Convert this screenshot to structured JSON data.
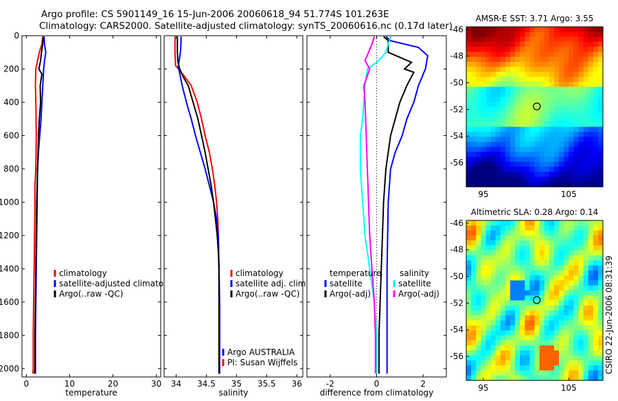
{
  "header": {
    "title_line1": "Argo profile: CS 5901149_16 15-Jun-2006 20060618_94 51.774S 101.263E",
    "title_line2": "Climatology: CARS2000. Satellite-adjusted climatology: synTS_20060616.nc (0.17d later)"
  },
  "side_label": "CSIRO 22-Jun-2006 08:31:39",
  "colors": {
    "climatology": "#ff0000",
    "satellite": "#0000ff",
    "argo": "#000000",
    "satellite_salinity": "#00ffff",
    "argo_salinity_diff": "#ff00ff",
    "axis": "#000000"
  },
  "chart_data": [
    {
      "id": "temperature",
      "type": "line",
      "xlabel": "temperature",
      "ylabel": "",
      "xlim": [
        -1,
        31
      ],
      "ylim": [
        2050,
        0
      ],
      "y_reversed": true,
      "xticks": [
        0,
        10,
        20,
        30
      ],
      "yticks": [
        0,
        200,
        400,
        600,
        800,
        1000,
        1200,
        1400,
        1600,
        1800,
        2000
      ],
      "legend_position": "lower-right",
      "legend": [
        "climatology",
        "satellite-adjusted climatology",
        "Argo(..raw -QC)"
      ],
      "series": [
        {
          "name": "climatology",
          "color_key": "climatology",
          "points": [
            [
              3.8,
              5
            ],
            [
              3.6,
              50
            ],
            [
              3.0,
              100
            ],
            [
              2.6,
              150
            ],
            [
              2.2,
              200
            ],
            [
              2.1,
              300
            ],
            [
              2.2,
              400
            ],
            [
              2.3,
              600
            ],
            [
              2.2,
              800
            ],
            [
              2.0,
              900
            ],
            [
              2.0,
              1000
            ],
            [
              1.9,
              1200
            ],
            [
              1.8,
              1400
            ],
            [
              1.7,
              1600
            ],
            [
              1.6,
              1800
            ],
            [
              1.6,
              2000
            ],
            [
              1.5,
              2030
            ]
          ]
        },
        {
          "name": "satellite-adjusted climatology",
          "color_key": "satellite",
          "points": [
            [
              4.1,
              5
            ],
            [
              4.2,
              50
            ],
            [
              4.5,
              100
            ],
            [
              4.2,
              150
            ],
            [
              4.0,
              200
            ],
            [
              3.8,
              300
            ],
            [
              3.6,
              400
            ],
            [
              3.4,
              500
            ],
            [
              3.1,
              600
            ],
            [
              2.8,
              700
            ],
            [
              2.6,
              800
            ],
            [
              2.5,
              1000
            ],
            [
              2.4,
              1200
            ],
            [
              2.3,
              1400
            ],
            [
              2.2,
              1600
            ],
            [
              2.1,
              1800
            ],
            [
              2.1,
              2000
            ],
            [
              2.1,
              2030
            ]
          ]
        },
        {
          "name": "Argo(..raw -QC)",
          "color_key": "argo",
          "points": [
            [
              3.9,
              5
            ],
            [
              3.8,
              50
            ],
            [
              3.5,
              100
            ],
            [
              3.3,
              150
            ],
            [
              2.9,
              200
            ],
            [
              3.6,
              230
            ],
            [
              3.2,
              300
            ],
            [
              3.3,
              400
            ],
            [
              3.0,
              500
            ],
            [
              2.8,
              600
            ],
            [
              2.7,
              700
            ],
            [
              2.6,
              800
            ],
            [
              2.5,
              900
            ],
            [
              2.4,
              1000
            ],
            [
              2.3,
              1200
            ],
            [
              2.2,
              1400
            ],
            [
              2.1,
              1600
            ],
            [
              2.0,
              1800
            ],
            [
              2.0,
              2000
            ],
            [
              1.9,
              2030
            ]
          ]
        }
      ]
    },
    {
      "id": "salinity",
      "type": "line",
      "xlabel": "salinity",
      "ylabel": "",
      "xlim": [
        33.8,
        36.1
      ],
      "ylim": [
        2050,
        0
      ],
      "y_reversed": true,
      "xticks": [
        34,
        34.5,
        35,
        35.5,
        36
      ],
      "yticks": [
        0,
        200,
        400,
        600,
        800,
        1000,
        1200,
        1400,
        1600,
        1800,
        2000
      ],
      "legend_position": "lower-right",
      "legend": [
        "climatology",
        "satellite adj. clim.",
        "Argo(..raw -QC)"
      ],
      "annotation": [
        "Argo AUSTRALIA",
        "PI: Susan Wijffels"
      ],
      "series": [
        {
          "name": "climatology",
          "color_key": "climatology",
          "points": [
            [
              33.98,
              5
            ],
            [
              33.98,
              100
            ],
            [
              33.99,
              180
            ],
            [
              34.04,
              200
            ],
            [
              34.15,
              250
            ],
            [
              34.25,
              300
            ],
            [
              34.35,
              400
            ],
            [
              34.42,
              500
            ],
            [
              34.48,
              600
            ],
            [
              34.55,
              700
            ],
            [
              34.6,
              800
            ],
            [
              34.64,
              900
            ],
            [
              34.67,
              1000
            ],
            [
              34.69,
              1100
            ],
            [
              34.7,
              1200
            ],
            [
              34.71,
              1400
            ],
            [
              34.72,
              1600
            ],
            [
              34.72,
              2030
            ]
          ]
        },
        {
          "name": "satellite adj. clim.",
          "color_key": "satellite",
          "points": [
            [
              34.08,
              5
            ],
            [
              34.08,
              40
            ],
            [
              34.07,
              100
            ],
            [
              34.05,
              150
            ],
            [
              34.03,
              190
            ],
            [
              34.05,
              210
            ],
            [
              34.1,
              300
            ],
            [
              34.17,
              400
            ],
            [
              34.25,
              500
            ],
            [
              34.32,
              600
            ],
            [
              34.4,
              700
            ],
            [
              34.48,
              800
            ],
            [
              34.55,
              900
            ],
            [
              34.62,
              1000
            ],
            [
              34.67,
              1100
            ],
            [
              34.7,
              1200
            ],
            [
              34.71,
              1400
            ],
            [
              34.72,
              1600
            ],
            [
              34.72,
              2030
            ]
          ]
        },
        {
          "name": "Argo(..raw -QC)",
          "color_key": "argo",
          "points": [
            [
              34.02,
              5
            ],
            [
              34.02,
              100
            ],
            [
              34.03,
              160
            ],
            [
              34.06,
              200
            ],
            [
              34.12,
              250
            ],
            [
              34.2,
              300
            ],
            [
              34.28,
              400
            ],
            [
              34.36,
              500
            ],
            [
              34.42,
              600
            ],
            [
              34.48,
              700
            ],
            [
              34.53,
              800
            ],
            [
              34.58,
              900
            ],
            [
              34.62,
              1000
            ],
            [
              34.65,
              1100
            ],
            [
              34.68,
              1200
            ],
            [
              34.7,
              1300
            ],
            [
              34.71,
              1400
            ],
            [
              34.71,
              1600
            ],
            [
              34.71,
              2030
            ]
          ]
        }
      ]
    },
    {
      "id": "difference",
      "type": "line",
      "xlabel": "difference from climatology",
      "ylabel": "",
      "xlim": [
        -3,
        3
      ],
      "ylim": [
        2050,
        0
      ],
      "y_reversed": true,
      "xticks": [
        -2,
        0,
        2
      ],
      "yticks": [
        0,
        200,
        400,
        600,
        800,
        1000,
        1200,
        1400,
        1600,
        1800,
        2000
      ],
      "zero_line": true,
      "legend_position": "lower-center",
      "legend_groups": [
        {
          "title": "temperature",
          "entries": [
            "satellite",
            "Argo(-adj)"
          ]
        },
        {
          "title": "salinity",
          "entries": [
            "satellite",
            "Argo(-adj)"
          ]
        }
      ],
      "series": [
        {
          "name": "temperature satellite",
          "color_key": "satellite",
          "points": [
            [
              0.4,
              5
            ],
            [
              0.6,
              30
            ],
            [
              1.8,
              70
            ],
            [
              2.2,
              120
            ],
            [
              2.1,
              200
            ],
            [
              1.8,
              300
            ],
            [
              1.6,
              400
            ],
            [
              1.3,
              500
            ],
            [
              1.1,
              600
            ],
            [
              0.8,
              700
            ],
            [
              0.6,
              800
            ],
            [
              0.5,
              1000
            ],
            [
              0.45,
              1400
            ],
            [
              0.45,
              1800
            ],
            [
              0.45,
              2030
            ]
          ]
        },
        {
          "name": "temperature Argo(-adj)",
          "color_key": "argo",
          "points": [
            [
              0.3,
              5
            ],
            [
              0.5,
              30
            ],
            [
              0.5,
              100
            ],
            [
              1.5,
              160
            ],
            [
              1.2,
              200
            ],
            [
              1.6,
              220
            ],
            [
              1.3,
              300
            ],
            [
              1.0,
              400
            ],
            [
              0.8,
              500
            ],
            [
              0.6,
              600
            ],
            [
              0.5,
              700
            ],
            [
              0.4,
              800
            ],
            [
              0.3,
              1000
            ],
            [
              0.2,
              1400
            ],
            [
              0.1,
              1800
            ],
            [
              0.1,
              2030
            ]
          ]
        },
        {
          "name": "salinity satellite",
          "color_key": "satellite_salinity",
          "points": [
            [
              0.6,
              5
            ],
            [
              0.5,
              50
            ],
            [
              0.4,
              100
            ],
            [
              0.1,
              150
            ],
            [
              -0.4,
              200
            ],
            [
              -0.5,
              300
            ],
            [
              -0.55,
              400
            ],
            [
              -0.6,
              500
            ],
            [
              -0.7,
              600
            ],
            [
              -0.7,
              800
            ],
            [
              -0.6,
              1000
            ],
            [
              -0.5,
              1200
            ],
            [
              -0.3,
              1400
            ],
            [
              -0.1,
              1600
            ],
            [
              0.0,
              1800
            ],
            [
              0.0,
              2030
            ]
          ]
        },
        {
          "name": "salinity Argo(-adj)",
          "color_key": "argo_salinity_diff",
          "points": [
            [
              -0.1,
              5
            ],
            [
              -0.2,
              50
            ],
            [
              -0.5,
              150
            ],
            [
              -0.3,
              200
            ],
            [
              -0.55,
              300
            ],
            [
              -0.5,
              400
            ],
            [
              -0.45,
              600
            ],
            [
              -0.4,
              800
            ],
            [
              -0.35,
              1000
            ],
            [
              -0.3,
              1200
            ],
            [
              -0.2,
              1400
            ],
            [
              -0.1,
              1600
            ],
            [
              -0.05,
              1800
            ],
            [
              -0.05,
              2030
            ]
          ]
        }
      ]
    }
  ],
  "maps": [
    {
      "id": "sst",
      "title": "AMSR-E SST: 3.71 Argo: 3.55",
      "type": "heatmap",
      "xlim": [
        93,
        109
      ],
      "ylim": [
        -57.8,
        -45.8
      ],
      "xticks": [
        95,
        105
      ],
      "xtick_labels": [
        "95",
        "105"
      ],
      "yticks": [
        -46,
        -48,
        -50,
        -52,
        -54,
        -56
      ],
      "ytick_labels": [
        "-46",
        "-48",
        "-50",
        "-52",
        "-54",
        "-56"
      ],
      "float_position": [
        101.263,
        -51.774
      ],
      "colormap": "jet"
    },
    {
      "id": "sla",
      "title": "Altimetric SLA: 0.28 Argo: 0.14",
      "type": "heatmap",
      "xlim": [
        93,
        109
      ],
      "ylim": [
        -57.8,
        -45.8
      ],
      "xticks": [
        95,
        105
      ],
      "xtick_labels": [
        "95",
        "105"
      ],
      "yticks": [
        -46,
        -48,
        -50,
        -52,
        -54,
        -56
      ],
      "ytick_labels": [
        "-46",
        "-48",
        "-50",
        "-52",
        "-54",
        "-56"
      ],
      "float_position": [
        101.263,
        -51.774
      ],
      "colormap": "jet"
    }
  ]
}
